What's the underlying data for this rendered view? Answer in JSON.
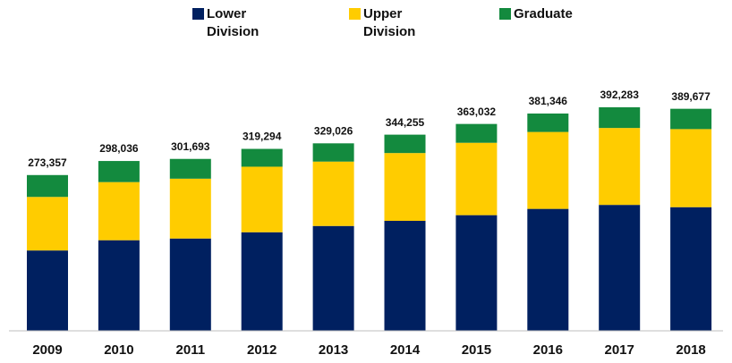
{
  "chart_data": {
    "type": "stacked_bar",
    "categories": [
      "2009",
      "2010",
      "2011",
      "2012",
      "2013",
      "2014",
      "2015",
      "2016",
      "2017",
      "2018"
    ],
    "series": [
      {
        "name": "Lower Division",
        "color": "#002060",
        "values": [
          141000,
          159000,
          162000,
          173000,
          184000,
          193000,
          203000,
          214000,
          221000,
          217000
        ]
      },
      {
        "name": "Upper Division",
        "color": "#ffcc00",
        "values": [
          94000,
          102000,
          105000,
          115000,
          113000,
          119000,
          127000,
          135000,
          135000,
          137000
        ]
      },
      {
        "name": "Graduate",
        "color": "#138a3e",
        "values": [
          38357,
          37036,
          34693,
          31294,
          32026,
          32255,
          33032,
          32346,
          36283,
          35677
        ]
      }
    ],
    "totals": [
      273357,
      298036,
      301693,
      319294,
      329026,
      344255,
      363032,
      381346,
      392283,
      389677
    ],
    "total_labels": [
      "273,357",
      "298,036",
      "301,693",
      "319,294",
      "329,026",
      "344,255",
      "363,032",
      "381,346",
      "392,283",
      "389,677"
    ]
  }
}
